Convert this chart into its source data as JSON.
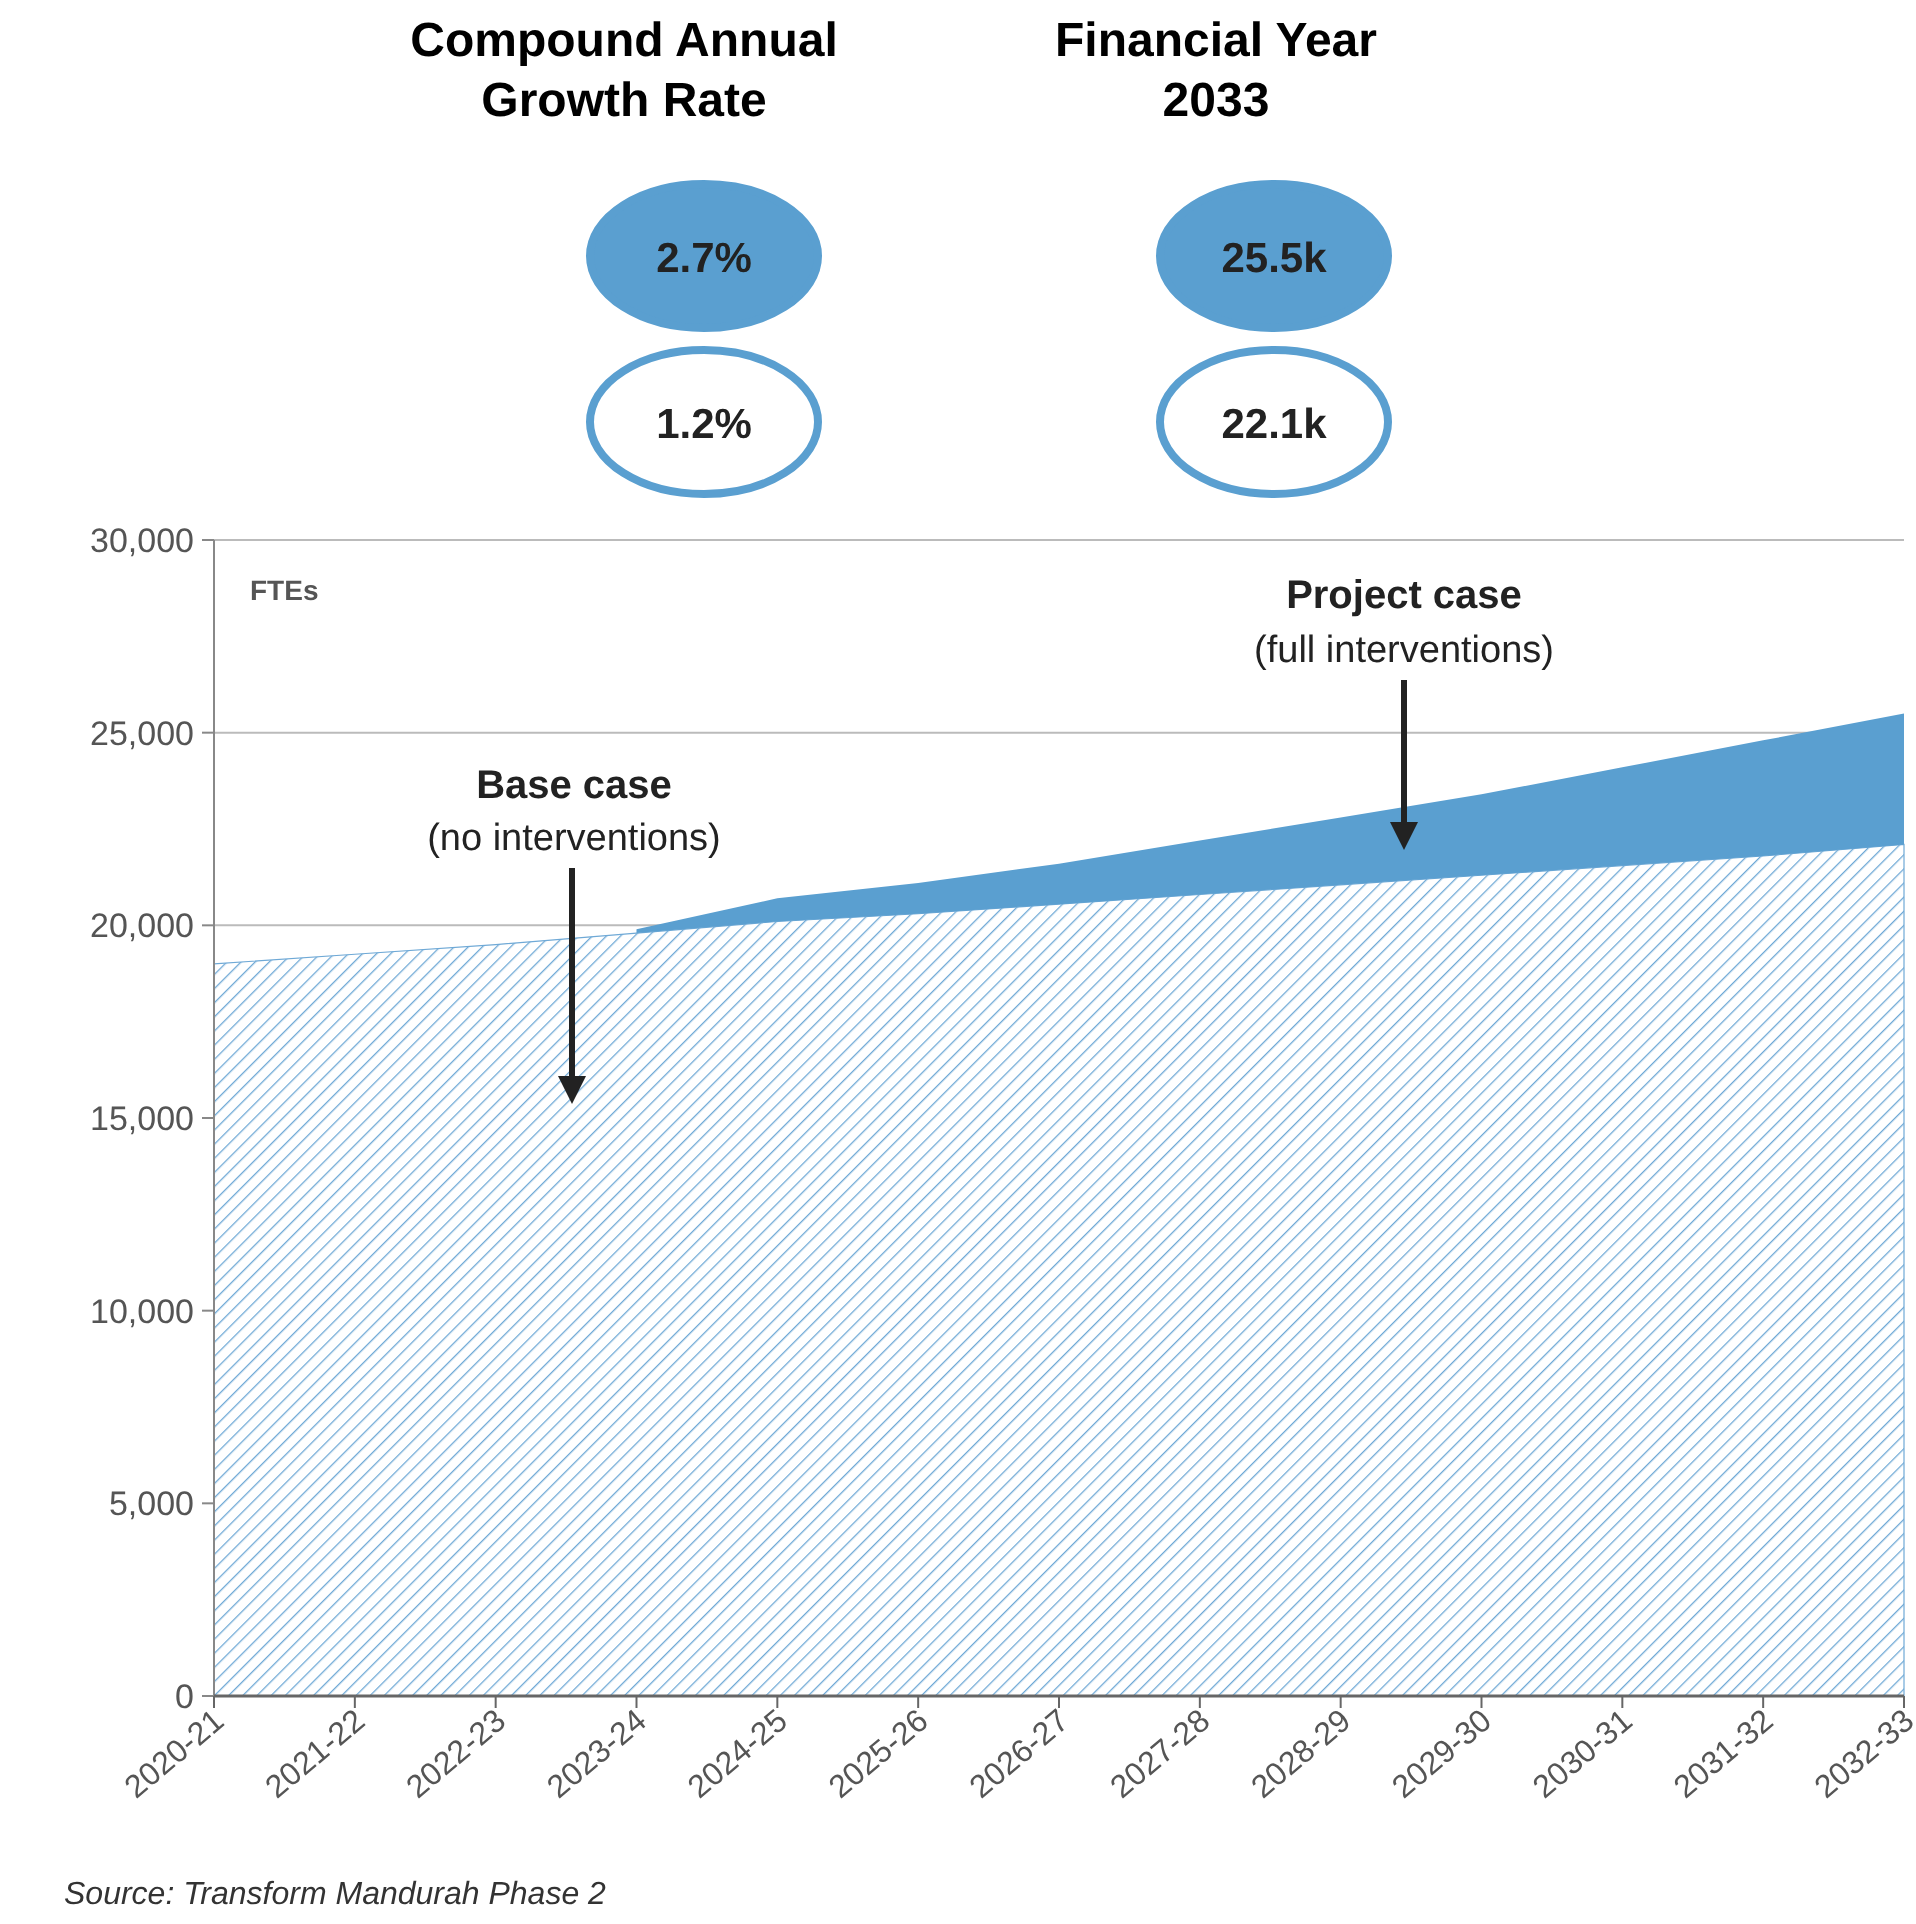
{
  "chart_data": {
    "type": "area",
    "stacked": true,
    "categories": [
      "2020-21",
      "2021-22",
      "2022-23",
      "2023-24",
      "2024-25",
      "2025-26",
      "2026-27",
      "2027-28",
      "2028-29",
      "2029-30",
      "2030-31",
      "2031-32",
      "2032-33"
    ],
    "series": [
      {
        "color": "#6fa9d6",
        "values": [
          19000,
          19250,
          19500,
          19800,
          20100,
          20300,
          20550,
          20800,
          21050,
          21300,
          21550,
          21800,
          22100
        ]
      },
      {
        "color": "#5a9fd0",
        "values": [
          null,
          null,
          null,
          100,
          600,
          800,
          1050,
          1400,
          1750,
          2100,
          2550,
          3000,
          3400
        ]
      }
    ],
    "ylim": [
      0,
      30000
    ],
    "yticks": [
      {
        "value": 0,
        "label": "0"
      },
      {
        "value": 5000,
        "label": "5,000"
      },
      {
        "value": 10000,
        "label": "10,000"
      },
      {
        "value": 15000,
        "label": "15,000"
      },
      {
        "value": 20000,
        "label": "20,000"
      },
      {
        "value": 25000,
        "label": "25,000"
      },
      {
        "value": 30000,
        "label": "30,000"
      }
    ],
    "ylabel": "FTEs",
    "grid": "y",
    "annotations": [
      "Compound Annual Growth Rate",
      "Financial Year 2033",
      "2.7%",
      "25.5k",
      "1.2%",
      "22.1k",
      "Project case",
      "(full interventions)",
      "Base case",
      "(no interventions)",
      "Source: Transform Mandurah Phase 2"
    ]
  }
}
